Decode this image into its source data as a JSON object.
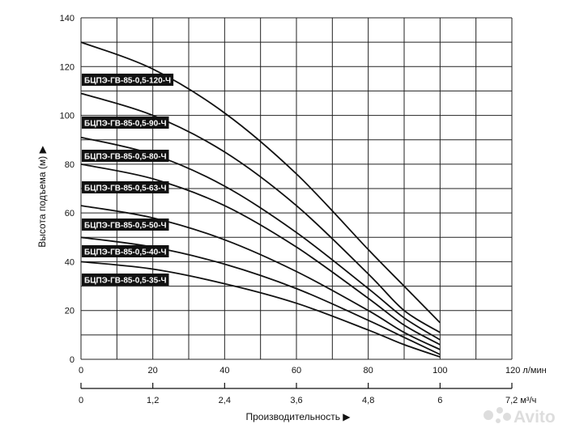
{
  "chart_data": {
    "type": "line",
    "title": "",
    "ylabel": "Высота подъема (м) ▶",
    "xlabel": "Производительность ▶",
    "ylim": [
      0,
      140
    ],
    "xlim": [
      0,
      120
    ],
    "grid": true,
    "y_ticks": [
      "0",
      "20",
      "40",
      "60",
      "80",
      "100",
      "120",
      "140"
    ],
    "x_ticks_lmin": [
      "0",
      "20",
      "40",
      "60",
      "80",
      "100"
    ],
    "x_unit_lmin": "120 л/мин",
    "x_ticks_m3h": [
      "0",
      "1,2",
      "2,4",
      "3,6",
      "4,8",
      "6"
    ],
    "x_unit_m3h": "7,2 м³/ч",
    "x_values": [
      0,
      20,
      40,
      60,
      80,
      90,
      100
    ],
    "series": [
      {
        "name": "БЦПЭ-ГВ-85-0,5-120-Ч",
        "values": [
          130,
          119,
          101,
          76,
          45,
          30,
          15
        ]
      },
      {
        "name": "БЦПЭ-ГВ-85-0,5-90-Ч",
        "values": [
          109,
          100,
          85,
          63,
          35,
          20,
          11
        ]
      },
      {
        "name": "БЦПЭ-ГВ-85-0,5-80-Ч",
        "values": [
          91,
          84,
          71,
          52,
          29,
          17,
          8
        ]
      },
      {
        "name": "БЦПЭ-ГВ-85-0,5-63-Ч",
        "values": [
          80,
          74,
          63,
          46,
          25,
          14,
          6
        ]
      },
      {
        "name": "БЦПЭ-ГВ-85-0,5-50-Ч",
        "values": [
          63,
          58,
          49,
          36,
          20,
          11,
          4
        ]
      },
      {
        "name": "БЦПЭ-ГВ-85-0,5-40-Ч",
        "values": [
          50,
          46,
          39,
          29,
          16,
          9,
          2
        ]
      },
      {
        "name": "БЦПЭ-ГВ-85-0,5-35-Ч",
        "values": [
          40,
          37,
          31,
          23,
          12,
          6,
          1
        ]
      }
    ]
  },
  "watermark": "Avito"
}
